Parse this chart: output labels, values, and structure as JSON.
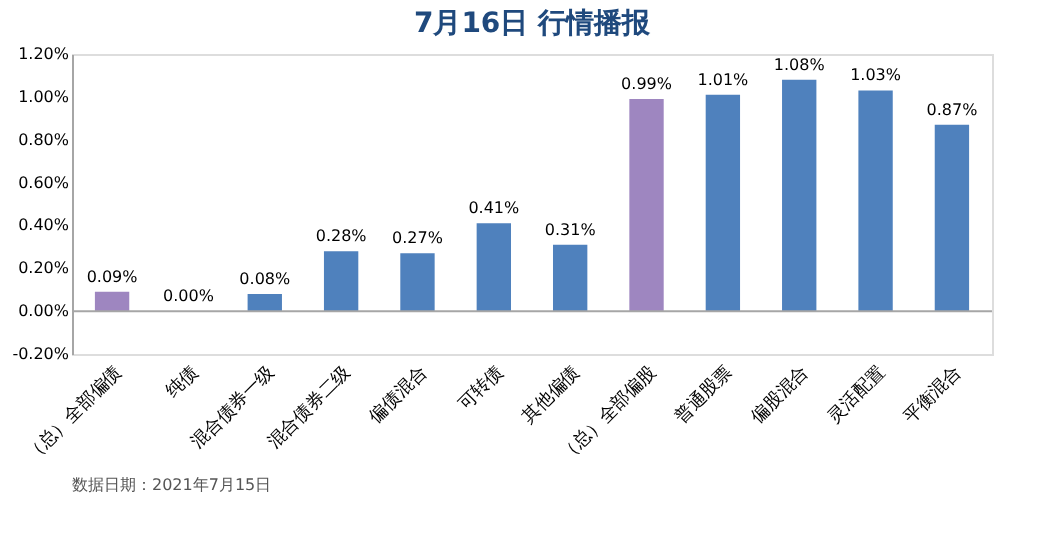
{
  "chart_data": {
    "type": "bar",
    "title": "7月16日  行情播报",
    "categories": [
      "（总）全部偏债",
      "纯债",
      "混合债券一级",
      "混合债券二级",
      "偏债混合",
      "可转债",
      "其他偏债",
      "（总）全部偏股",
      "普通股票",
      "偏股混合",
      "灵活配置",
      "平衡混合"
    ],
    "values": [
      0.09,
      0.0,
      0.08,
      0.28,
      0.27,
      0.41,
      0.31,
      0.99,
      1.01,
      1.08,
      1.03,
      0.87
    ],
    "value_labels": [
      "0.09%",
      "0.00%",
      "0.08%",
      "0.28%",
      "0.27%",
      "0.41%",
      "0.31%",
      "0.99%",
      "1.01%",
      "1.08%",
      "1.03%",
      "0.87%"
    ],
    "colors": [
      "#9e86c0",
      "#4f81bd",
      "#4f81bd",
      "#4f81bd",
      "#4f81bd",
      "#4f81bd",
      "#4f81bd",
      "#9e86c0",
      "#4f81bd",
      "#4f81bd",
      "#4f81bd",
      "#4f81bd"
    ],
    "ylim": [
      -0.2,
      1.2
    ],
    "yticks": [
      {
        "value": -0.2,
        "label": "-0.20%"
      },
      {
        "value": 0,
        "label": "0.00%"
      },
      {
        "value": 0.2,
        "label": "0.20%"
      },
      {
        "value": 0.4,
        "label": "0.40%"
      },
      {
        "value": 0.6,
        "label": "0.60%"
      },
      {
        "value": 0.8,
        "label": "0.80%"
      },
      {
        "value": 1.0,
        "label": "1.00%"
      },
      {
        "value": 1.2,
        "label": "1.20%"
      }
    ],
    "ref_lines": [
      {
        "axis": "y",
        "value": 0,
        "color": "#a6a6a6"
      }
    ],
    "grid": false,
    "annotations": [
      "数据日期：2021年7月15日"
    ]
  }
}
